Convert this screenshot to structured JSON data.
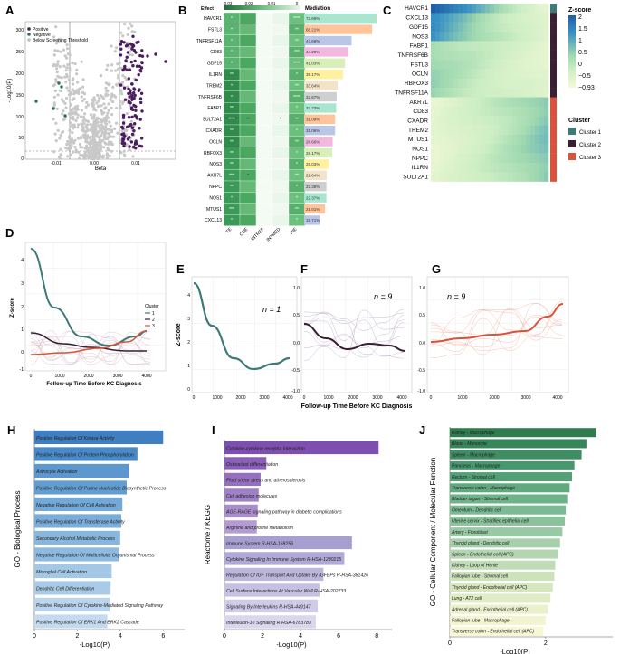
{
  "panels": {
    "A": "A",
    "B": "B",
    "C": "C",
    "D": "D",
    "E": "E",
    "F": "F",
    "G": "G",
    "H": "H",
    "I": "I",
    "J": "J"
  },
  "volcano": {
    "ylabel": "-Log10(P)",
    "xlabel": "Beta",
    "yticks": [
      "0",
      "50",
      "100",
      "150",
      "200",
      "250",
      "300"
    ],
    "xticks": [
      "-0.01",
      "0.00",
      "0.01"
    ],
    "legend": [
      {
        "label": "Positive",
        "color": "#4b1d5e"
      },
      {
        "label": "Negative",
        "color": "#2b6f66"
      },
      {
        "label": "Below Screening Threshold",
        "color": "#bdbdbd"
      }
    ]
  },
  "mediation": {
    "effect_label": "Effect",
    "scale_ticks": [
      "0.03",
      "0.02",
      "0.01",
      "0"
    ],
    "title": "Mediation",
    "columns": [
      "TE",
      "CDE",
      "INTREF",
      "INTMED",
      "PIE"
    ],
    "rows": [
      {
        "gene": "HAVCR1",
        "pct": "72.69%",
        "val": 72.69,
        "color": "#a8e6cf",
        "stars": [
          "*",
          "",
          "",
          "",
          "****"
        ]
      },
      {
        "gene": "FSTL3",
        "pct": "68.21%",
        "val": 68.21,
        "color": "#ffc49a",
        "stars": [
          "*",
          "",
          "",
          "",
          "**"
        ]
      },
      {
        "gene": "TNFRSF11A",
        "pct": "47.68%",
        "val": 47.68,
        "color": "#b9c6e8",
        "stars": [
          "*",
          "",
          "",
          "",
          "**"
        ]
      },
      {
        "gene": "CD83",
        "pct": "44.29%",
        "val": 44.29,
        "color": "#f2b8df",
        "stars": [
          "*",
          "",
          "",
          "",
          "***"
        ]
      },
      {
        "gene": "GDF15",
        "pct": "41.03%",
        "val": 41.03,
        "color": "#d8f0b8",
        "stars": [
          "*",
          "",
          "",
          "",
          "****"
        ]
      },
      {
        "gene": "IL1RN",
        "pct": "39.17%",
        "val": 39.17,
        "color": "#fff1a0",
        "stars": [
          "**",
          "",
          "",
          "",
          "*"
        ]
      },
      {
        "gene": "TREM2",
        "pct": "33.64%",
        "val": 33.64,
        "color": "#f3e3c8",
        "stars": [
          "*",
          "",
          "",
          "",
          "**"
        ]
      },
      {
        "gene": "TNFRSF6B",
        "pct": "32.67%",
        "val": 32.67,
        "color": "#cfcfcf",
        "stars": [
          "*",
          "",
          "",
          "",
          "****"
        ]
      },
      {
        "gene": "FABP1",
        "pct": "32.23%",
        "val": 32.23,
        "color": "#a8e6cf",
        "stars": [
          "**",
          "",
          "",
          "",
          "*"
        ]
      },
      {
        "gene": "SULT2A1",
        "pct": "31.09%",
        "val": 31.09,
        "color": "#ffc49a",
        "stars": [
          "****",
          "**",
          "",
          "*",
          "**"
        ]
      },
      {
        "gene": "CXADR",
        "pct": "31.06%",
        "val": 31.06,
        "color": "#b9c6e8",
        "stars": [
          "**",
          "",
          "",
          "",
          "*"
        ]
      },
      {
        "gene": "OCLN",
        "pct": "28.66%",
        "val": 28.66,
        "color": "#f2b8df",
        "stars": [
          "**",
          "",
          "",
          "",
          "**"
        ]
      },
      {
        "gene": "RBFOX3",
        "pct": "28.17%",
        "val": 28.17,
        "color": "#d8f0b8",
        "stars": [
          "**",
          "",
          "",
          "",
          "*"
        ]
      },
      {
        "gene": "NOS3",
        "pct": "25.03%",
        "val": 25.03,
        "color": "#fff1a0",
        "stars": [
          "**",
          "",
          "",
          "",
          "*"
        ]
      },
      {
        "gene": "AKR7L",
        "pct": "22.64%",
        "val": 22.64,
        "color": "#f3e3c8",
        "stars": [
          "***",
          "*",
          "",
          "",
          "**"
        ]
      },
      {
        "gene": "NPPC",
        "pct": "22.38%",
        "val": 22.38,
        "color": "#cfcfcf",
        "stars": [
          "**",
          "",
          "",
          "",
          "*"
        ]
      },
      {
        "gene": "NOS1",
        "pct": "22.37%",
        "val": 22.37,
        "color": "#a8e6cf",
        "stars": [
          "*",
          "",
          "",
          "",
          "*"
        ]
      },
      {
        "gene": "MTUS1",
        "pct": "21.01%",
        "val": 21.01,
        "color": "#ffc49a",
        "stars": [
          "***",
          "",
          "",
          "",
          "**"
        ]
      },
      {
        "gene": "CXCL13",
        "pct": "15.71%",
        "val": 15.71,
        "color": "#b9c6e8",
        "stars": [
          "*",
          "",
          "",
          "",
          "*"
        ]
      }
    ]
  },
  "heatmap": {
    "rows": [
      "HAVCR1",
      "CXCL13",
      "GDF15",
      "NOS3",
      "FABP1",
      "TNFRSF6B",
      "FSTL3",
      "OCLN",
      "RBFOX3",
      "TNFRSF11A",
      "AKR7L",
      "CD83",
      "CXADR",
      "TREM2",
      "MTUS1",
      "NOS1",
      "NPPC",
      "IL1RN",
      "SULT2A1"
    ],
    "clusters": [
      1,
      2,
      2,
      2,
      2,
      2,
      2,
      2,
      2,
      2,
      3,
      3,
      3,
      3,
      3,
      3,
      3,
      3,
      3
    ],
    "zscore_title": "Z-score",
    "zscore_ticks": [
      "2",
      "1.5",
      "1",
      "0.5",
      "0",
      "−0.5",
      "−0.93"
    ],
    "cluster_title": "Cluster",
    "cluster_legend": [
      {
        "label": "Cluster 1",
        "color": "#3d7a78"
      },
      {
        "label": "Cluster 2",
        "color": "#3a1f35"
      },
      {
        "label": "Cluster 3",
        "color": "#d9533b"
      }
    ]
  },
  "trend": {
    "ylabel": "Z-score",
    "xlabel": "Follow-up Time Before KC Diagnosis",
    "d_xticks": [
      "0",
      "1000",
      "2000",
      "3000",
      "4000"
    ],
    "d_yticks": [
      "4",
      "3",
      "2",
      "1",
      "0",
      "-1"
    ],
    "legend_title": "Cluster",
    "legend": [
      {
        "label": "1",
        "color": "#3d7a78"
      },
      {
        "label": "2",
        "color": "#3a1f35"
      },
      {
        "label": "3",
        "color": "#d9533b"
      }
    ],
    "e_n": "n = 1",
    "f_n": "n = 9",
    "g_n": "n = 9",
    "e_yticks": [
      "4",
      "3",
      "2",
      "1",
      "0"
    ],
    "f_yticks": [
      "1.0",
      "0.5",
      "0.0",
      "-0.5",
      "-1.0"
    ],
    "g_yticks": [
      "1.0",
      "0.5",
      "0.0",
      "-0.5",
      "-1.0"
    ]
  },
  "chart_data": [
    {
      "type": "bar",
      "panel": "H",
      "ylabel": "GO - Biological Process",
      "xlabel": "-Log10(P)",
      "xticks": [
        "0",
        "2",
        "4",
        "6"
      ],
      "xlim": [
        0,
        7
      ],
      "categories": [
        "Positive Regulation Of Kinase Activity",
        "Positive Regulation Of Protein Phosphorylation",
        "Astrocyte Activation",
        "Positive Regulation Of Purine Nucleotide Biosynthetic Process",
        "Negative Regulation Of Cell Activation",
        "Positive Regulation Of Transferase Activity",
        "Secondary Alcohol Metabolic Process",
        "Negative Regulation Of Multicellular Organismal Process",
        "Microglial Cell Activation",
        "Dendritic Cell Differentiation",
        "Positive Regulation Of Cytokine-Mediated Signaling Pathway",
        "Positive Regulation Of ERK1 And ERK2 Cascade"
      ],
      "values": [
        6.0,
        4.8,
        4.4,
        4.3,
        4.1,
        4.05,
        4.0,
        3.95,
        3.6,
        3.55,
        3.5,
        3.4
      ],
      "colors": [
        "#3f7fc1",
        "#4a89c8",
        "#5c98cf",
        "#629dd2",
        "#73a8d7",
        "#7aaeda",
        "#88b7dd",
        "#8dbae0",
        "#a3c8e6",
        "#aacbe8",
        "#b9d4ec",
        "#c4dbef"
      ]
    },
    {
      "type": "bar",
      "panel": "I",
      "ylabel": "Reactome / KEGG",
      "xlabel": "-Log10(P)",
      "xticks": [
        "0",
        "2",
        "4",
        "6",
        "8"
      ],
      "xlim": [
        0,
        8.8
      ],
      "categories": [
        "Cytokine-cytokine receptor interaction",
        "Osteoclast differentiation",
        "Fluid shear stress and atherosclerosis",
        "Cell adhesion molecules",
        "AGE-RAGE signaling pathway in diabetic complications",
        "Arginine and proline metabolism",
        "Immune System R-HSA-168256",
        "Cytokine Signaling In Immune System R-HSA-1280215",
        "Regulation Of IGF Transport And Uptake By IGFBPs R-HSA-381426",
        "Cell Surface Interactions At Vascular Wall R-HSA-202733",
        "Signaling By Interleukins R-HSA-449147",
        "Interleukin-10 Signaling R-HSA-6783783"
      ],
      "values": [
        8.1,
        2.2,
        1.9,
        1.8,
        1.75,
        1.7,
        6.7,
        6.3,
        5.2,
        5.0,
        4.9,
        4.8
      ],
      "colors": [
        "#7d4fb0",
        "#8a5fb8",
        "#9570bf",
        "#a080c6",
        "#aa8ecc",
        "#b49bd2",
        "#a79fd0",
        "#b1aad6",
        "#bcb5dc",
        "#c6c0e2",
        "#d0cbe7",
        "#dad6ec"
      ]
    },
    {
      "type": "bar",
      "panel": "J",
      "ylabel": "GO - Cellular Component / Molecular Function",
      "xlabel": "-Log10(P)",
      "xticks": [
        "0",
        "2"
      ],
      "xlim": [
        0,
        3.4
      ],
      "categories": [
        "Kidney - Macrophage",
        "Blood - Monocyte",
        "Spleen - Macrophage",
        "Pancreas - Macrophage",
        "Rectum - Stromal cell",
        "Transverse colon - Macrophage",
        "Bladder organ - Stromal cell",
        "Omentum - Dendritic cell",
        "Uterine cervix - Stratified epithelial cell",
        "Artery - Fibroblast",
        "Thyroid gland - Dendritic cell",
        "Spleen - Endothelial cell (APC)",
        "Kidney - Loop of Henle",
        "Fallopian tube - Stromal cell",
        "Thyroid gland - Endothelial cell (APC)",
        "Lung - AT2 cell",
        "Adrenal gland - Endothelial cell (APC)",
        "Fallopian tube - Macrophage",
        "Transverse colon - Endothelial cell (APC)"
      ],
      "values": [
        3.05,
        2.85,
        2.75,
        2.6,
        2.55,
        2.5,
        2.45,
        2.42,
        2.4,
        2.35,
        2.3,
        2.25,
        2.2,
        2.18,
        2.15,
        2.1,
        2.05,
        2.0,
        1.95
      ],
      "colors": [
        "#2f7d4f",
        "#37855a",
        "#3f8e63",
        "#48976d",
        "#54a076",
        "#60a97f",
        "#6db289",
        "#7bba92",
        "#89c29b",
        "#97c9a3",
        "#a5d0aa",
        "#b3d6b0",
        "#bfdcb6",
        "#cbe2bb",
        "#d6e7c0",
        "#e0ecc5",
        "#e9f0ca",
        "#f1f4cf",
        "#f7f7d6"
      ]
    }
  ]
}
